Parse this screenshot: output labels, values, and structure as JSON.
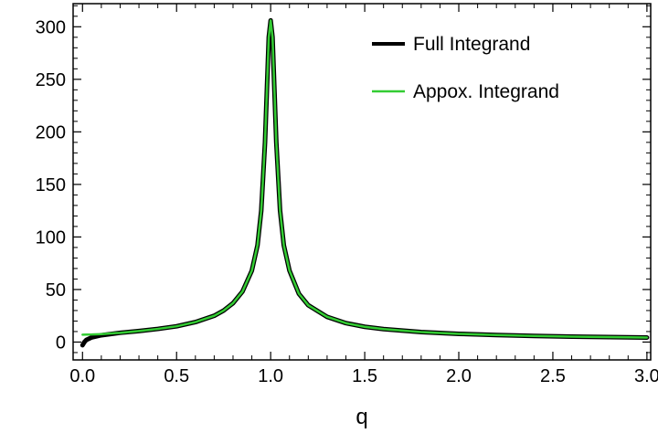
{
  "chart_data": {
    "type": "line",
    "title": "",
    "xlabel": "q",
    "ylabel": "",
    "xlim": [
      -0.05,
      3.02
    ],
    "ylim": [
      -17,
      322
    ],
    "x_ticks": [
      0.0,
      0.5,
      1.0,
      1.5,
      2.0,
      2.5,
      3.0
    ],
    "x_tick_labels": [
      "0.0",
      "0.5",
      "1.0",
      "1.5",
      "2.0",
      "2.5",
      "3.0"
    ],
    "y_ticks": [
      0,
      50,
      100,
      150,
      200,
      250,
      300
    ],
    "y_tick_labels": [
      "0",
      "50",
      "100",
      "150",
      "200",
      "250",
      "300"
    ],
    "grid": false,
    "legend_position": "top-right",
    "series": [
      {
        "name": "Full Integrand",
        "color": "#000000",
        "points": [
          [
            0.0,
            -3
          ],
          [
            0.01,
            0
          ],
          [
            0.02,
            2
          ],
          [
            0.05,
            4.5
          ],
          [
            0.1,
            6.5
          ],
          [
            0.2,
            8.8
          ],
          [
            0.3,
            10.5
          ],
          [
            0.4,
            12.5
          ],
          [
            0.5,
            15
          ],
          [
            0.6,
            19
          ],
          [
            0.7,
            25
          ],
          [
            0.75,
            30
          ],
          [
            0.8,
            37
          ],
          [
            0.85,
            48
          ],
          [
            0.9,
            68
          ],
          [
            0.93,
            92
          ],
          [
            0.95,
            125
          ],
          [
            0.97,
            190
          ],
          [
            0.98,
            240
          ],
          [
            0.99,
            290
          ],
          [
            1.0,
            306
          ],
          [
            1.01,
            290
          ],
          [
            1.02,
            240
          ],
          [
            1.03,
            190
          ],
          [
            1.05,
            125
          ],
          [
            1.07,
            92
          ],
          [
            1.1,
            68
          ],
          [
            1.15,
            46
          ],
          [
            1.2,
            35
          ],
          [
            1.3,
            24
          ],
          [
            1.4,
            18
          ],
          [
            1.5,
            14.5
          ],
          [
            1.6,
            12.3
          ],
          [
            1.8,
            9.5
          ],
          [
            2.0,
            7.8
          ],
          [
            2.2,
            6.7
          ],
          [
            2.4,
            5.8
          ],
          [
            2.6,
            5.2
          ],
          [
            2.8,
            4.7
          ],
          [
            3.0,
            4.3
          ]
        ]
      },
      {
        "name": "Appox. Integrand",
        "color": "#33cc33",
        "points": [
          [
            0.0,
            7
          ],
          [
            0.05,
            7.2
          ],
          [
            0.1,
            7.6
          ],
          [
            0.2,
            8.8
          ],
          [
            0.3,
            10.5
          ],
          [
            0.4,
            12.5
          ],
          [
            0.5,
            15
          ],
          [
            0.6,
            19
          ],
          [
            0.7,
            25
          ],
          [
            0.75,
            30
          ],
          [
            0.8,
            37
          ],
          [
            0.85,
            48
          ],
          [
            0.9,
            68
          ],
          [
            0.93,
            92
          ],
          [
            0.95,
            125
          ],
          [
            0.97,
            190
          ],
          [
            0.98,
            240
          ],
          [
            0.99,
            290
          ],
          [
            1.0,
            306
          ],
          [
            1.01,
            290
          ],
          [
            1.02,
            240
          ],
          [
            1.03,
            190
          ],
          [
            1.05,
            125
          ],
          [
            1.07,
            92
          ],
          [
            1.1,
            68
          ],
          [
            1.15,
            46
          ],
          [
            1.2,
            35
          ],
          [
            1.3,
            24
          ],
          [
            1.4,
            18
          ],
          [
            1.5,
            14.5
          ],
          [
            1.6,
            12.3
          ],
          [
            1.8,
            9.5
          ],
          [
            2.0,
            7.8
          ],
          [
            2.2,
            6.7
          ],
          [
            2.4,
            5.8
          ],
          [
            2.6,
            5.2
          ],
          [
            2.8,
            4.7
          ],
          [
            3.0,
            4.3
          ]
        ]
      }
    ]
  }
}
